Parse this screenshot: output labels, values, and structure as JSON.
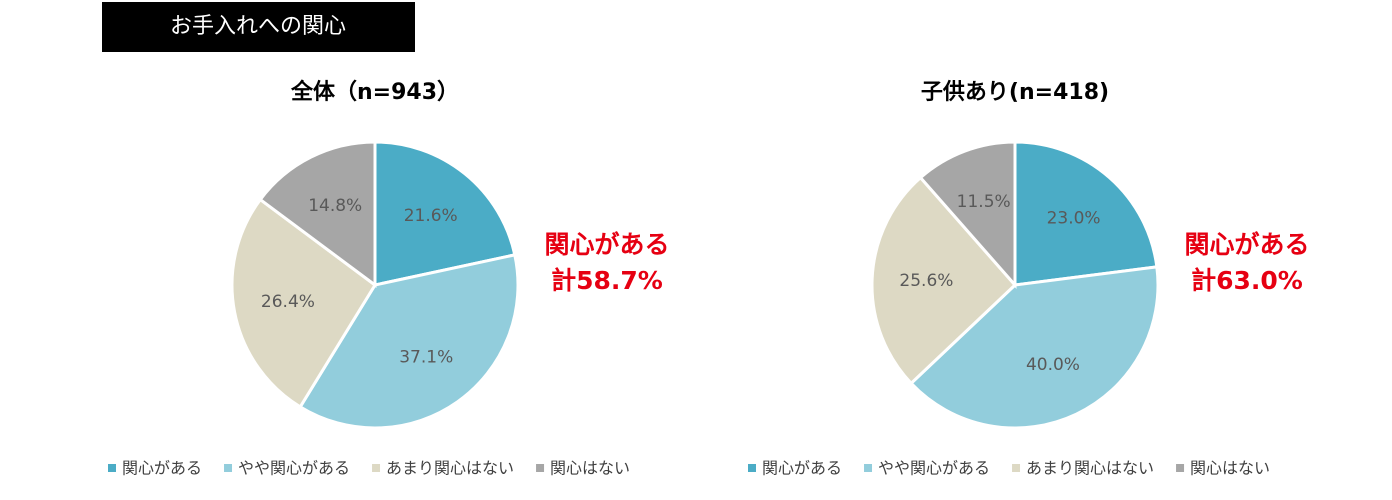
{
  "header": {
    "title": "お手入れへの関心"
  },
  "chart_data": [
    {
      "type": "pie",
      "title": "全体（n=943）",
      "categories": [
        "関心がある",
        "やや関心がある",
        "あまり関心はない",
        "関心はない"
      ],
      "values": [
        21.6,
        37.1,
        26.4,
        14.8
      ],
      "value_labels": [
        "21.6%",
        "37.1%",
        "26.4%",
        "14.8%"
      ],
      "colors": [
        "#4bacc6",
        "#92cddc",
        "#ddd9c4",
        "#a6a6a6"
      ],
      "annotation": [
        "関心がある",
        "計58.7%"
      ]
    },
    {
      "type": "pie",
      "title": "子供あり(n=418)",
      "categories": [
        "関心がある",
        "やや関心がある",
        "あまり関心はない",
        "関心はない"
      ],
      "values": [
        23.0,
        40.0,
        25.6,
        11.5
      ],
      "value_labels": [
        "23.0%",
        "40.0%",
        "25.6%",
        "11.5%"
      ],
      "colors": [
        "#4bacc6",
        "#92cddc",
        "#ddd9c4",
        "#a6a6a6"
      ],
      "annotation": [
        "関心がある",
        "計63.0%"
      ]
    }
  ]
}
